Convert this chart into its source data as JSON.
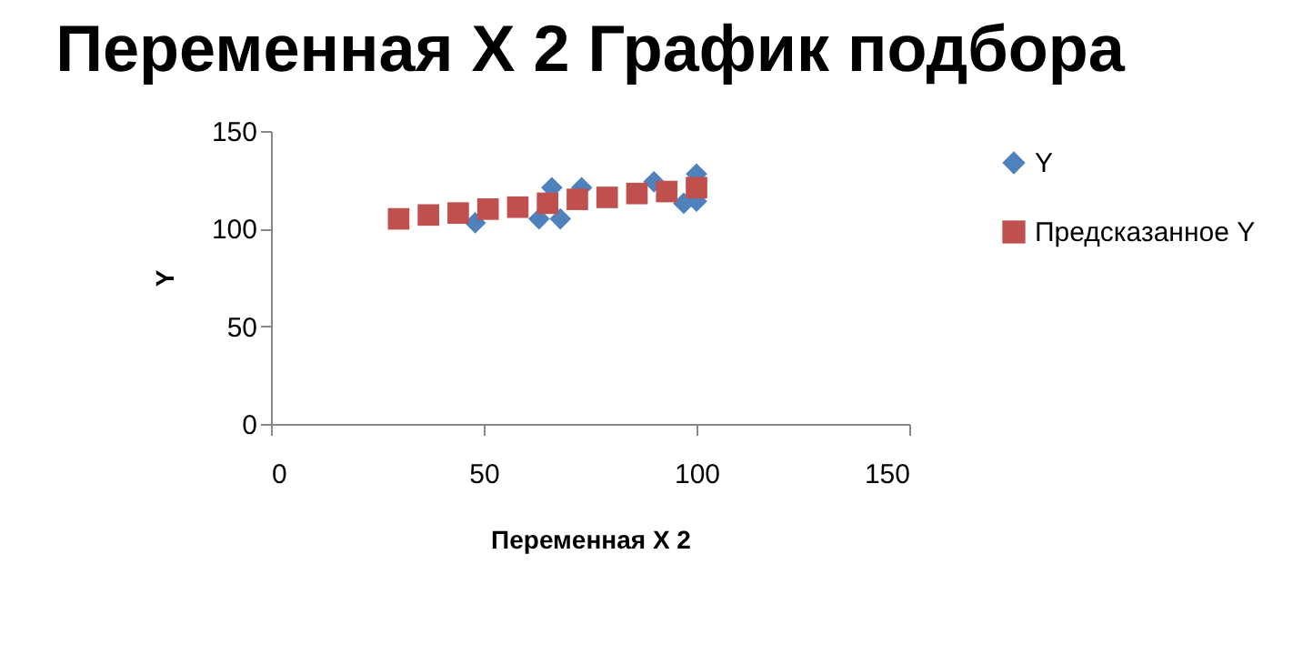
{
  "chart_data": {
    "type": "scatter",
    "title": "Переменная X 2 График подбора",
    "xlabel": "Переменная X 2",
    "ylabel": "Y",
    "xlim": [
      0,
      150
    ],
    "xticks": [
      0,
      50,
      100,
      150
    ],
    "ylim": [
      0,
      150
    ],
    "yticks": [
      0,
      50,
      100,
      150
    ],
    "grid": false,
    "legend": "right",
    "series": [
      {
        "name": "Y",
        "color": "#4f81bd",
        "marker": "diamond",
        "x": [
          48,
          63,
          66,
          68,
          73,
          90,
          97,
          100,
          100
        ],
        "values": [
          103,
          105,
          121,
          105,
          121,
          124,
          113,
          128,
          114
        ]
      },
      {
        "name": "Предсказанное Y",
        "color": "#c0504d",
        "marker": "square",
        "x": [
          30,
          37,
          44,
          51,
          58,
          65,
          72,
          79,
          86,
          93,
          100
        ],
        "values": [
          105,
          107,
          108,
          110,
          111,
          113,
          115,
          116,
          118,
          119,
          121
        ]
      }
    ]
  }
}
